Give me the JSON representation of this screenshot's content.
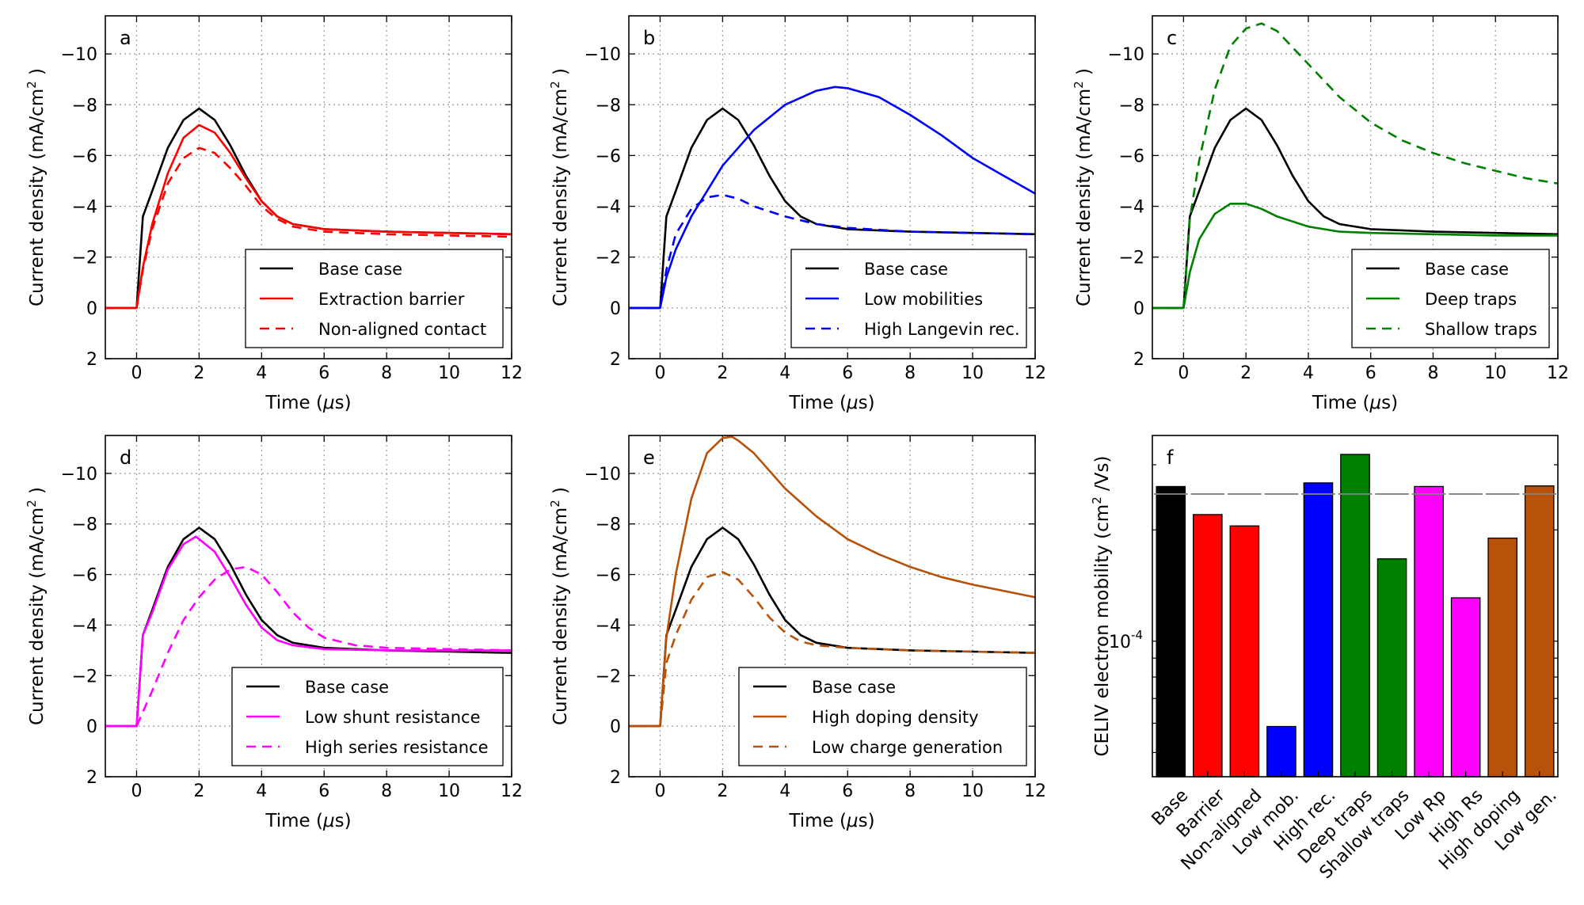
{
  "chart_data": [
    {
      "panel": "a",
      "type": "line",
      "xlabel": "Time (",
      "xlabel_unit": "s)",
      "ylabel": "Current density (mA/cm",
      "ylabel_end": " )",
      "xlim": [
        -1,
        12
      ],
      "ylim": [
        2,
        -11.5
      ],
      "y_inverted": true,
      "xticks": [
        0,
        2,
        4,
        6,
        8,
        10,
        12
      ],
      "xticklabels": [
        "0",
        "2",
        "4",
        "6",
        "8",
        "10",
        "12"
      ],
      "yticks": [
        2,
        0,
        -2,
        -4,
        -6,
        -8,
        -10
      ],
      "yticklabels": [
        "2",
        "0",
        "−2",
        "−4",
        "−6",
        "−8",
        "−10"
      ],
      "grid": true,
      "legend_position": "lower-right",
      "series": [
        {
          "name": "Base case",
          "color": "#000000",
          "dash": "solid",
          "x": [
            -1,
            0,
            0.2,
            0.5,
            1,
            1.5,
            2,
            2.5,
            3,
            3.5,
            4,
            4.5,
            5,
            6,
            8,
            10,
            12
          ],
          "y": [
            0,
            0,
            -3.6,
            -4.6,
            -6.3,
            -7.4,
            -7.85,
            -7.4,
            -6.4,
            -5.2,
            -4.2,
            -3.6,
            -3.3,
            -3.1,
            -3.0,
            -2.95,
            -2.9
          ]
        },
        {
          "name": "Extraction barrier",
          "color": "#ff0000",
          "dash": "solid",
          "x": [
            -1,
            0,
            0.2,
            0.5,
            1,
            1.5,
            2,
            2.5,
            3,
            3.5,
            4,
            4.5,
            5,
            6,
            8,
            10,
            12
          ],
          "y": [
            0,
            0,
            -1.6,
            -3.3,
            -5.3,
            -6.7,
            -7.2,
            -6.9,
            -6.1,
            -5.1,
            -4.2,
            -3.6,
            -3.3,
            -3.1,
            -3.0,
            -2.95,
            -2.9
          ]
        },
        {
          "name": "Non-aligned contact",
          "color": "#ff0000",
          "dash": "dashed",
          "x": [
            -1,
            0,
            0.2,
            0.5,
            1,
            1.5,
            2,
            2.5,
            3,
            3.5,
            4,
            4.5,
            5,
            6,
            8,
            10,
            12
          ],
          "y": [
            0,
            0,
            -1.5,
            -3.1,
            -4.9,
            -5.9,
            -6.3,
            -6.1,
            -5.5,
            -4.8,
            -4.0,
            -3.5,
            -3.2,
            -3.0,
            -2.9,
            -2.85,
            -2.8
          ]
        }
      ]
    },
    {
      "panel": "b",
      "type": "line",
      "xlabel": "Time (",
      "xlabel_unit": "s)",
      "ylabel": "Current density (mA/cm",
      "ylabel_end": " )",
      "xlim": [
        -1,
        12
      ],
      "ylim": [
        2,
        -11.5
      ],
      "y_inverted": true,
      "xticks": [
        0,
        2,
        4,
        6,
        8,
        10,
        12
      ],
      "xticklabels": [
        "0",
        "2",
        "4",
        "6",
        "8",
        "10",
        "12"
      ],
      "yticks": [
        2,
        0,
        -2,
        -4,
        -6,
        -8,
        -10
      ],
      "yticklabels": [
        "2",
        "0",
        "−2",
        "−4",
        "−6",
        "−8",
        "−10"
      ],
      "grid": true,
      "legend_position": "lower-right",
      "series": [
        {
          "name": "Base case",
          "color": "#000000",
          "dash": "solid",
          "x": [
            -1,
            0,
            0.2,
            0.5,
            1,
            1.5,
            2,
            2.5,
            3,
            3.5,
            4,
            4.5,
            5,
            6,
            8,
            10,
            12
          ],
          "y": [
            0,
            0,
            -3.6,
            -4.6,
            -6.3,
            -7.4,
            -7.85,
            -7.4,
            -6.4,
            -5.2,
            -4.2,
            -3.6,
            -3.3,
            -3.1,
            -3.0,
            -2.95,
            -2.9
          ]
        },
        {
          "name": "Low mobilities",
          "color": "#0000ff",
          "dash": "solid",
          "x": [
            -1,
            0,
            0.2,
            0.5,
            1,
            1.5,
            2,
            3,
            4,
            5,
            5.6,
            6,
            7,
            8,
            9,
            10,
            11,
            12
          ],
          "y": [
            0,
            0,
            -1.2,
            -2.3,
            -3.6,
            -4.6,
            -5.6,
            -7.0,
            -8.0,
            -8.55,
            -8.7,
            -8.65,
            -8.3,
            -7.6,
            -6.8,
            -5.9,
            -5.2,
            -4.5
          ]
        },
        {
          "name": "High Langevin rec.",
          "color": "#0000ff",
          "dash": "dashed",
          "x": [
            -1,
            0,
            0.2,
            0.5,
            1,
            1.5,
            2,
            2.5,
            3,
            4,
            5,
            6,
            8,
            10,
            12
          ],
          "y": [
            0,
            0,
            -1.5,
            -2.9,
            -3.9,
            -4.35,
            -4.45,
            -4.3,
            -4.0,
            -3.6,
            -3.3,
            -3.15,
            -3.0,
            -2.95,
            -2.9
          ]
        }
      ]
    },
    {
      "panel": "c",
      "type": "line",
      "xlabel": "Time (",
      "xlabel_unit": "s)",
      "ylabel": "Current density (mA/cm",
      "ylabel_end": " )",
      "xlim": [
        -1,
        12
      ],
      "ylim": [
        2,
        -11.5
      ],
      "y_inverted": true,
      "xticks": [
        0,
        2,
        4,
        6,
        8,
        10,
        12
      ],
      "xticklabels": [
        "0",
        "2",
        "4",
        "6",
        "8",
        "10",
        "12"
      ],
      "yticks": [
        2,
        0,
        -2,
        -4,
        -6,
        -8,
        -10
      ],
      "yticklabels": [
        "2",
        "0",
        "−2",
        "−4",
        "−6",
        "−8",
        "−10"
      ],
      "grid": true,
      "legend_position": "lower-right",
      "series": [
        {
          "name": "Base case",
          "color": "#000000",
          "dash": "solid",
          "x": [
            -1,
            0,
            0.2,
            0.5,
            1,
            1.5,
            2,
            2.5,
            3,
            3.5,
            4,
            4.5,
            5,
            6,
            8,
            10,
            12
          ],
          "y": [
            0,
            0,
            -3.6,
            -4.6,
            -6.3,
            -7.4,
            -7.85,
            -7.4,
            -6.4,
            -5.2,
            -4.2,
            -3.6,
            -3.3,
            -3.1,
            -3.0,
            -2.95,
            -2.9
          ]
        },
        {
          "name": "Deep traps",
          "color": "#008000",
          "dash": "solid",
          "x": [
            -1,
            0,
            0.2,
            0.5,
            1,
            1.5,
            2,
            2.5,
            3,
            4,
            5,
            6,
            8,
            10,
            12
          ],
          "y": [
            0,
            0,
            -1.4,
            -2.7,
            -3.7,
            -4.1,
            -4.1,
            -3.9,
            -3.6,
            -3.2,
            -3.0,
            -2.95,
            -2.9,
            -2.85,
            -2.85
          ]
        },
        {
          "name": "Shallow traps",
          "color": "#008000",
          "dash": "dashed",
          "x": [
            -1,
            0,
            0.2,
            0.5,
            1,
            1.5,
            2,
            2.5,
            3,
            4,
            5,
            6,
            7,
            8,
            9,
            10,
            11,
            12
          ],
          "y": [
            0,
            0,
            -3.5,
            -5.8,
            -8.6,
            -10.3,
            -11.0,
            -11.2,
            -10.9,
            -9.6,
            -8.3,
            -7.3,
            -6.6,
            -6.1,
            -5.7,
            -5.4,
            -5.1,
            -4.9
          ]
        }
      ]
    },
    {
      "panel": "d",
      "type": "line",
      "xlabel": "Time (",
      "xlabel_unit": "s)",
      "ylabel": "Current density (mA/cm",
      "ylabel_end": " )",
      "xlim": [
        -1,
        12
      ],
      "ylim": [
        2,
        -11.5
      ],
      "y_inverted": true,
      "xticks": [
        0,
        2,
        4,
        6,
        8,
        10,
        12
      ],
      "xticklabels": [
        "0",
        "2",
        "4",
        "6",
        "8",
        "10",
        "12"
      ],
      "yticks": [
        2,
        0,
        -2,
        -4,
        -6,
        -8,
        -10
      ],
      "yticklabels": [
        "2",
        "0",
        "−2",
        "−4",
        "−6",
        "−8",
        "−10"
      ],
      "grid": true,
      "legend_position": "lower-right",
      "series": [
        {
          "name": "Base case",
          "color": "#000000",
          "dash": "solid",
          "x": [
            -1,
            0,
            0.2,
            0.5,
            1,
            1.5,
            2,
            2.5,
            3,
            3.5,
            4,
            4.5,
            5,
            6,
            8,
            10,
            12
          ],
          "y": [
            0,
            0,
            -3.6,
            -4.6,
            -6.3,
            -7.4,
            -7.85,
            -7.4,
            -6.4,
            -5.2,
            -4.2,
            -3.6,
            -3.3,
            -3.1,
            -3.0,
            -2.95,
            -2.9
          ]
        },
        {
          "name": "Low shunt resistance",
          "color": "#ff00ff",
          "dash": "solid",
          "x": [
            -1,
            0,
            0.2,
            0.5,
            1,
            1.5,
            1.9,
            2.5,
            3,
            3.5,
            4,
            4.5,
            5,
            6,
            8,
            10,
            12
          ],
          "y": [
            0,
            0,
            -3.6,
            -4.5,
            -6.2,
            -7.2,
            -7.5,
            -6.9,
            -5.9,
            -4.8,
            -3.9,
            -3.4,
            -3.2,
            -3.05,
            -3.0,
            -3.0,
            -3.0
          ]
        },
        {
          "name": "High series resistance",
          "color": "#ff00ff",
          "dash": "dashed",
          "x": [
            -1,
            0,
            0.5,
            1,
            1.5,
            2,
            2.5,
            3,
            3.5,
            4,
            4.5,
            5,
            5.5,
            6,
            7,
            8,
            10,
            12
          ],
          "y": [
            0,
            0,
            -1.4,
            -2.9,
            -4.2,
            -5.1,
            -5.8,
            -6.2,
            -6.3,
            -6.0,
            -5.3,
            -4.5,
            -3.9,
            -3.5,
            -3.2,
            -3.1,
            -3.05,
            -3.0
          ]
        }
      ]
    },
    {
      "panel": "e",
      "type": "line",
      "xlabel": "Time (",
      "xlabel_unit": "s)",
      "ylabel": "Current density (mA/cm",
      "ylabel_end": " )",
      "xlim": [
        -1,
        12
      ],
      "ylim": [
        2,
        -11.5
      ],
      "y_inverted": true,
      "xticks": [
        0,
        2,
        4,
        6,
        8,
        10,
        12
      ],
      "xticklabels": [
        "0",
        "2",
        "4",
        "6",
        "8",
        "10",
        "12"
      ],
      "yticks": [
        2,
        0,
        -2,
        -4,
        -6,
        -8,
        -10
      ],
      "yticklabels": [
        "2",
        "0",
        "−2",
        "−4",
        "−6",
        "−8",
        "−10"
      ],
      "grid": true,
      "legend_position": "lower-right",
      "series": [
        {
          "name": "Base case",
          "color": "#000000",
          "dash": "solid",
          "x": [
            -1,
            0,
            0.2,
            0.5,
            1,
            1.5,
            2,
            2.5,
            3,
            3.5,
            4,
            4.5,
            5,
            6,
            8,
            10,
            12
          ],
          "y": [
            0,
            0,
            -3.6,
            -4.6,
            -6.3,
            -7.4,
            -7.85,
            -7.4,
            -6.4,
            -5.2,
            -4.2,
            -3.6,
            -3.3,
            -3.1,
            -3.0,
            -2.95,
            -2.9
          ]
        },
        {
          "name": "High doping density",
          "color": "#b8520a",
          "dash": "solid",
          "x": [
            -1,
            0,
            0.2,
            0.5,
            1,
            1.5,
            2,
            2.3,
            2.5,
            3,
            4,
            5,
            6,
            7,
            8,
            9,
            10,
            11,
            12
          ],
          "y": [
            0,
            0,
            -3.5,
            -6.0,
            -9.0,
            -10.8,
            -11.4,
            -11.45,
            -11.3,
            -10.8,
            -9.4,
            -8.3,
            -7.4,
            -6.8,
            -6.3,
            -5.9,
            -5.6,
            -5.35,
            -5.1
          ]
        },
        {
          "name": "Low charge generation",
          "color": "#b8520a",
          "dash": "dashed",
          "x": [
            -1,
            0,
            0.2,
            0.5,
            1,
            1.5,
            2,
            2.5,
            3,
            3.5,
            4,
            4.5,
            5,
            6,
            8,
            10,
            12
          ],
          "y": [
            0,
            0,
            -2.5,
            -3.6,
            -5.0,
            -5.9,
            -6.1,
            -5.8,
            -5.1,
            -4.3,
            -3.7,
            -3.35,
            -3.2,
            -3.1,
            -3.0,
            -2.95,
            -2.9
          ]
        }
      ]
    },
    {
      "panel": "f",
      "type": "bar",
      "ylabel": "CELIV electron mobility (cm",
      "ylabel_end": " /Vs)",
      "yscale": "log",
      "ylim": [
        4.3e-05,
        0.00036
      ],
      "ytick_label_base": "10",
      "ytick_label_exp": "-4",
      "reference_line_value": 0.00025,
      "reference_line_color": "#808080",
      "categories": [
        "Base",
        "Barrier",
        "Non-aligned",
        "Low mob.",
        "High rec.",
        "Deep traps",
        "Shallow traps",
        "Low Rp",
        "High Rs",
        "High doping",
        "Low gen."
      ],
      "values": [
        0.000262,
        0.00022,
        0.000205,
        5.88e-05,
        0.000268,
        0.00032,
        0.000167,
        0.000262,
        0.000131,
        0.00019,
        0.000263
      ],
      "colors": [
        "#000000",
        "#ff0000",
        "#ff0000",
        "#0000ff",
        "#0000ff",
        "#008000",
        "#008000",
        "#ff00ff",
        "#ff00ff",
        "#b8520a",
        "#b8520a"
      ],
      "grid": false
    }
  ]
}
